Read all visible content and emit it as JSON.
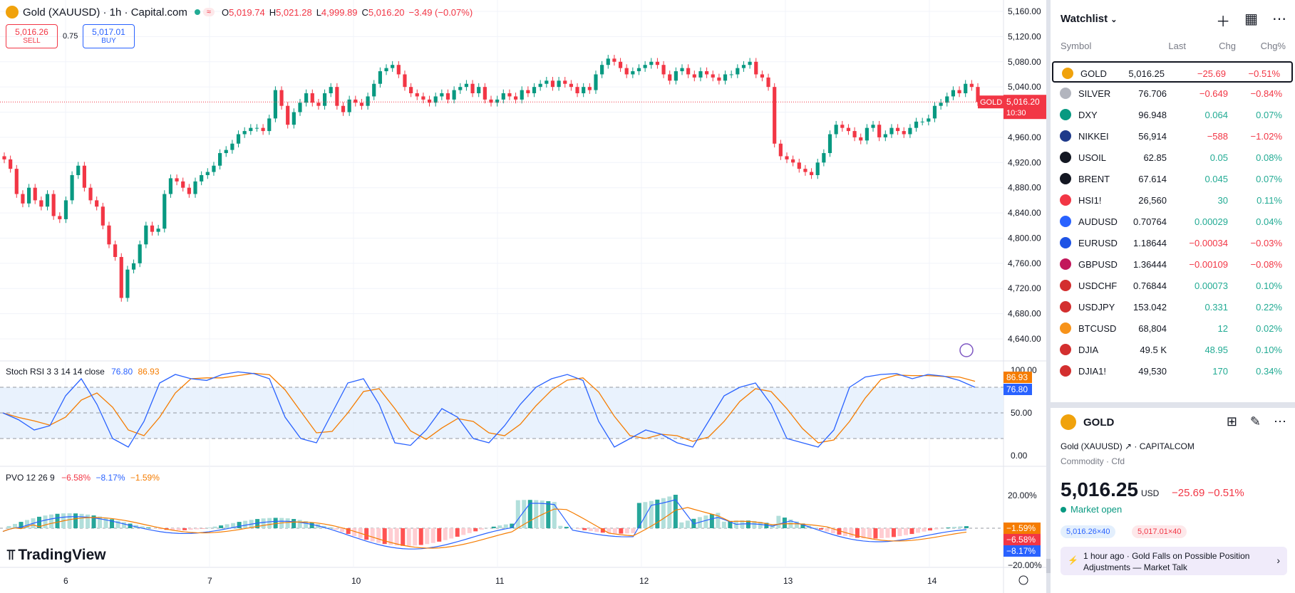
{
  "header": {
    "title": "Gold (XAUUSD) · 1h · Capital.com",
    "pill": "≈",
    "ohlc": {
      "o_label": "O",
      "o": "5,019.74",
      "h_label": "H",
      "h": "5,021.28",
      "l_label": "L",
      "l": "4,999.89",
      "c_label": "C",
      "c": "5,016.20",
      "change": "−3.49 (−0.07%)"
    }
  },
  "trade": {
    "sell_price": "5,016.26",
    "sell_label": "SELL",
    "spread": "0.75",
    "buy_price": "5,017.01",
    "buy_label": "BUY"
  },
  "price_axis": {
    "ticks": [
      "5,160.00",
      "5,120.00",
      "5,080.00",
      "5,040.00",
      "5,000.00",
      "4,960.00",
      "4,920.00",
      "4,880.00",
      "4,840.00",
      "4,800.00",
      "4,760.00",
      "4,720.00",
      "4,680.00",
      "4,640.00"
    ],
    "last_label": "GOLD",
    "last_price": "5,016.20",
    "countdown": "10:30"
  },
  "time_axis": {
    "ticks": [
      "6",
      "7",
      "10",
      "11",
      "12",
      "13",
      "14"
    ]
  },
  "stoch": {
    "label": "Stoch RSI 3 3 14 14 close",
    "k": "76.80",
    "d": "86.93",
    "ticks": [
      "100.00",
      "50.00",
      "0.00"
    ],
    "k_badge": "76.80",
    "d_badge": "86.93"
  },
  "pvo": {
    "label": "PVO 12 26 9",
    "v1": "−6.58%",
    "v2": "−8.17%",
    "v3": "−1.59%",
    "ticks": [
      "20.00%",
      "−20.00%"
    ],
    "badges": [
      "−1.59%",
      "−6.58%",
      "−8.17%"
    ]
  },
  "brand": {
    "logo": "TradingView"
  },
  "colors": {
    "up": "#089981",
    "down": "#f23645",
    "stoch_k": "#2962ff",
    "stoch_d": "#f57c00",
    "accent": "#2962ff"
  },
  "watchlist": {
    "title": "Watchlist",
    "columns": {
      "symbol": "Symbol",
      "last": "Last",
      "chg": "Chg",
      "chgp": "Chg%"
    },
    "rows": [
      {
        "symbol": "GOLD",
        "last": "5,016.25",
        "chg": "−25.69",
        "chgp": "−0.51%",
        "dir": "dn",
        "icon": "#f0a20c"
      },
      {
        "symbol": "SILVER",
        "last": "76.706",
        "chg": "−0.649",
        "chgp": "−0.84%",
        "dir": "dn",
        "icon": "#b2b5be"
      },
      {
        "symbol": "DXY",
        "last": "96.948",
        "chg": "0.064",
        "chgp": "0.07%",
        "dir": "up",
        "icon": "#089981"
      },
      {
        "symbol": "NIKKEI",
        "last": "56,914",
        "chg": "−588",
        "chgp": "−1.02%",
        "dir": "dn",
        "icon": "#1e3a8a"
      },
      {
        "symbol": "USOIL",
        "last": "62.85",
        "chg": "0.05",
        "chgp": "0.08%",
        "dir": "up",
        "icon": "#131722"
      },
      {
        "symbol": "BRENT",
        "last": "67.614",
        "chg": "0.045",
        "chgp": "0.07%",
        "dir": "up",
        "icon": "#131722"
      },
      {
        "symbol": "HSI1!",
        "last": "26,560",
        "chg": "30",
        "chgp": "0.11%",
        "dir": "up",
        "icon": "#f23645"
      },
      {
        "symbol": "AUDUSD",
        "last": "0.70764",
        "chg": "0.00029",
        "chgp": "0.04%",
        "dir": "up",
        "icon": "#2962ff"
      },
      {
        "symbol": "EURUSD",
        "last": "1.18644",
        "chg": "−0.00034",
        "chgp": "−0.03%",
        "dir": "dn",
        "icon": "#1e53e5"
      },
      {
        "symbol": "GBPUSD",
        "last": "1.36444",
        "chg": "−0.00109",
        "chgp": "−0.08%",
        "dir": "dn",
        "icon": "#c2185b"
      },
      {
        "symbol": "USDCHF",
        "last": "0.76844",
        "chg": "0.00073",
        "chgp": "0.10%",
        "dir": "up",
        "icon": "#d32f2f"
      },
      {
        "symbol": "USDJPY",
        "last": "153.042",
        "chg": "0.331",
        "chgp": "0.22%",
        "dir": "up",
        "icon": "#d32f2f"
      },
      {
        "symbol": "BTCUSD",
        "last": "68,804",
        "chg": "12",
        "chgp": "0.02%",
        "dir": "up",
        "icon": "#f7931a"
      },
      {
        "symbol": "DJIA",
        "last": "49.5 K",
        "chg": "48.95",
        "chgp": "0.10%",
        "dir": "up",
        "icon": "#d32f2f"
      },
      {
        "symbol": "DJIA1!",
        "last": "49,530",
        "chg": "170",
        "chgp": "0.34%",
        "dir": "up",
        "icon": "#d32f2f"
      }
    ]
  },
  "details": {
    "symbol": "GOLD",
    "name": "Gold (XAUUSD)",
    "exchange": "CAPITALCOM",
    "category": "Commodity · Cfd",
    "price": "5,016.25",
    "currency": "USD",
    "change": "−25.69",
    "change_pct": "−0.51%",
    "market_status": "Market open",
    "bid": "5,016.26×40",
    "ask": "5,017.01×40",
    "news_time": "1 hour ago",
    "news_text": "Gold Falls on Possible Position Adjustments — Market Talk"
  }
}
